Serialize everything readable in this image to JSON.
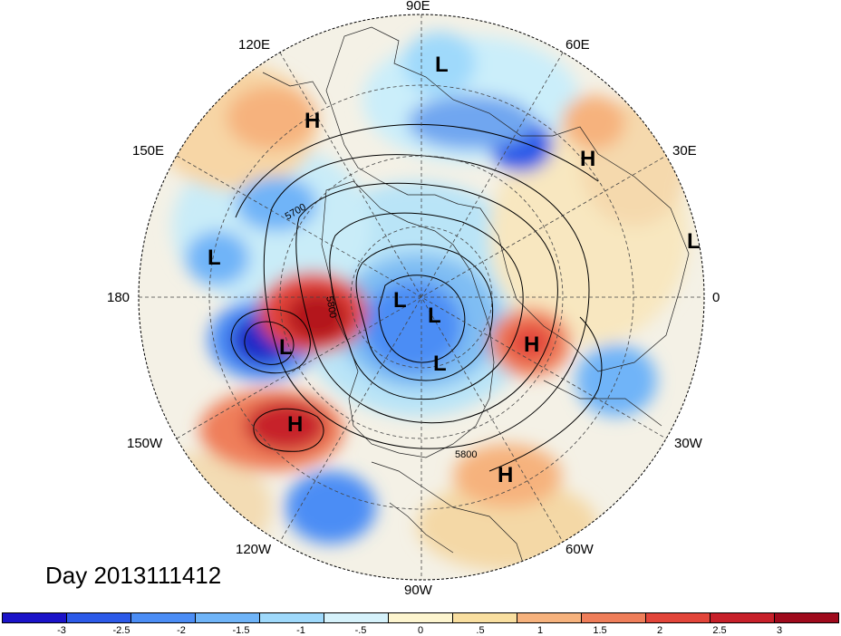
{
  "title": "Day 2013111412",
  "longitude_labels": [
    {
      "text": "90E"
    },
    {
      "text": "60E"
    },
    {
      "text": "30E"
    },
    {
      "text": "0"
    },
    {
      "text": "30W"
    },
    {
      "text": "60W"
    },
    {
      "text": "90W"
    },
    {
      "text": "120W"
    },
    {
      "text": "150W"
    },
    {
      "text": "180"
    },
    {
      "text": "150E"
    },
    {
      "text": "120E"
    }
  ],
  "pressure_centers": [
    "L",
    "H",
    "H",
    "L",
    "L",
    "L",
    "L",
    "L",
    "H",
    "L",
    "H",
    "H"
  ],
  "contour_labels": [
    "5700",
    "5800",
    "5800"
  ],
  "colorbar": {
    "colors": [
      "#1b13c8",
      "#2c5ae8",
      "#4b8df5",
      "#6fb4f8",
      "#9fd9fb",
      "#d6f2fb",
      "#fdf5cf",
      "#f9dfa0",
      "#f6b27d",
      "#ef7e5a",
      "#e2453a",
      "#c7202a",
      "#9f0a1c"
    ],
    "ticks": [
      "-3",
      "-2.5",
      "-2",
      "-1.5",
      "-1",
      "-.5",
      "0",
      ".5",
      "1",
      "1.5",
      "2",
      "2.5",
      "3"
    ]
  }
}
